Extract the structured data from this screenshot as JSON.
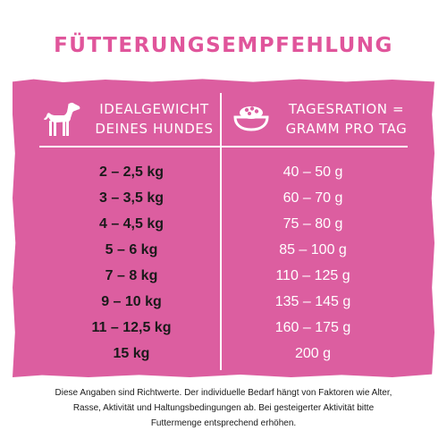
{
  "title": "FÜTTERUNGSEMPFEHLUNG",
  "header": {
    "left_line1": "IDEALGEWICHT",
    "left_line2": "DEINES HUNDES",
    "right_line1": "TAGESRATION =",
    "right_line2": "GRAMM PRO TAG",
    "left_icon": "dog-icon",
    "right_icon": "food-bowl-icon"
  },
  "rows": [
    {
      "weight": "2 – 2,5 kg",
      "ration": "40 – 50 g"
    },
    {
      "weight": "3 – 3,5 kg",
      "ration": "60 – 70 g"
    },
    {
      "weight": "4 – 4,5 kg",
      "ration": "75 – 80 g"
    },
    {
      "weight": "5 – 6 kg",
      "ration": "85 – 100 g"
    },
    {
      "weight": "7 – 8 kg",
      "ration": "110 – 125 g"
    },
    {
      "weight": "9 – 10 kg",
      "ration": "135 – 145 g"
    },
    {
      "weight": "11 – 12,5 kg",
      "ration": "160 – 175 g"
    },
    {
      "weight": "15 kg",
      "ration": "200 g"
    }
  ],
  "note": {
    "line1": "Diese Angaben sind Richtwerte. Der individuelle Bedarf hängt von Faktoren wie Alter,",
    "line2": "Rasse, Aktivität und Haltungsbedingungen ab. Bei gesteigerter Aktivität bitte",
    "line3": "Futtermenge entsprechend erhöhen."
  },
  "colors": {
    "accent": "#dc5ea0",
    "title": "#e0559b",
    "text_dark": "#1a1a1a",
    "text_light": "#ffffff"
  }
}
